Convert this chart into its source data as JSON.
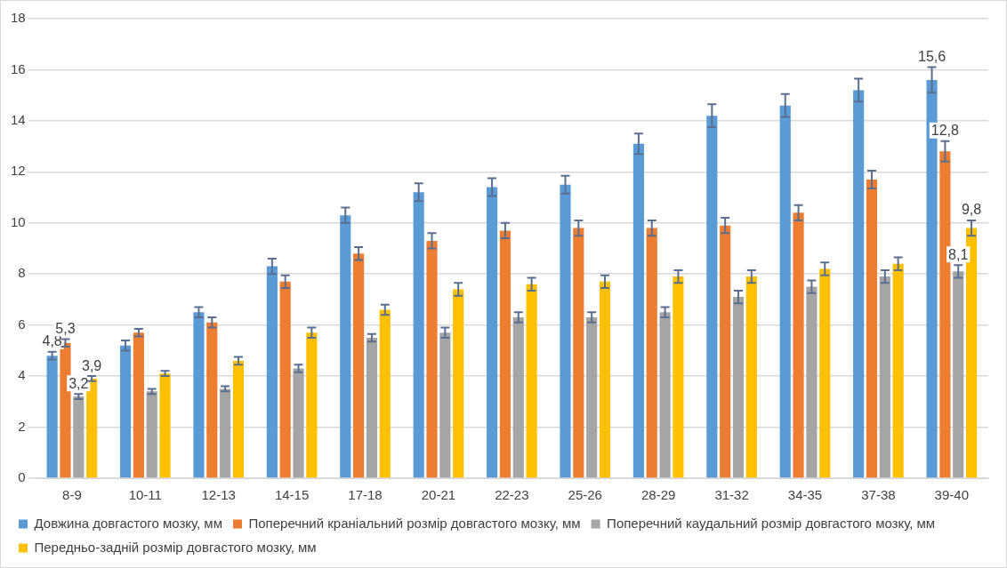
{
  "chart_data": {
    "type": "bar",
    "categories": [
      "8-9",
      "10-11",
      "12-13",
      "14-15",
      "17-18",
      "20-21",
      "22-23",
      "25-26",
      "28-29",
      "31-32",
      "34-35",
      "37-38",
      "39-40"
    ],
    "series": [
      {
        "name": "Довжина довгастого мозку, мм",
        "color": "#5b9bd5",
        "values": [
          4.8,
          5.2,
          6.5,
          8.3,
          10.3,
          11.2,
          11.4,
          11.5,
          13.1,
          14.2,
          14.6,
          15.2,
          15.6
        ],
        "errors": [
          0.15,
          0.2,
          0.2,
          0.3,
          0.3,
          0.35,
          0.35,
          0.35,
          0.4,
          0.45,
          0.45,
          0.45,
          0.5
        ],
        "value_labels": [
          "4,8",
          null,
          null,
          null,
          null,
          null,
          null,
          null,
          null,
          null,
          null,
          null,
          "15,6"
        ]
      },
      {
        "name": "Поперечний краніальний розмір довгастого мозку, мм",
        "color": "#ed7d31",
        "values": [
          5.3,
          5.7,
          6.1,
          7.7,
          8.8,
          9.3,
          9.7,
          9.8,
          9.8,
          9.9,
          10.4,
          11.7,
          12.8
        ],
        "errors": [
          0.15,
          0.15,
          0.2,
          0.25,
          0.25,
          0.3,
          0.3,
          0.3,
          0.3,
          0.3,
          0.3,
          0.35,
          0.4
        ],
        "value_labels": [
          "5,3",
          null,
          null,
          null,
          null,
          null,
          null,
          null,
          null,
          null,
          null,
          null,
          "12,8"
        ]
      },
      {
        "name": "Поперечний каудальний розмір довгастого мозку, мм",
        "color": "#a5a5a5",
        "values": [
          3.2,
          3.4,
          3.5,
          4.3,
          5.5,
          5.7,
          6.3,
          6.3,
          6.5,
          7.1,
          7.5,
          7.9,
          8.1
        ],
        "errors": [
          0.1,
          0.1,
          0.1,
          0.15,
          0.15,
          0.2,
          0.2,
          0.2,
          0.2,
          0.25,
          0.25,
          0.25,
          0.25
        ],
        "value_labels": [
          "3,2",
          null,
          null,
          null,
          null,
          null,
          null,
          null,
          null,
          null,
          null,
          null,
          "8,1"
        ]
      },
      {
        "name": "Передньо-задній розмір довгастого мозку, мм",
        "color": "#ffc000",
        "values": [
          3.9,
          4.1,
          4.6,
          5.7,
          6.6,
          7.4,
          7.6,
          7.7,
          7.9,
          7.9,
          8.2,
          8.4,
          9.8
        ],
        "errors": [
          0.1,
          0.1,
          0.15,
          0.2,
          0.2,
          0.25,
          0.25,
          0.25,
          0.25,
          0.25,
          0.25,
          0.25,
          0.3
        ],
        "value_labels": [
          "3,9",
          null,
          null,
          null,
          null,
          null,
          null,
          null,
          null,
          null,
          null,
          null,
          "9,8"
        ]
      }
    ],
    "ylim": [
      0,
      18
    ],
    "yticks": [
      0,
      2,
      4,
      6,
      8,
      10,
      12,
      14,
      16,
      18
    ],
    "grid": "y",
    "legend": "bottom"
  }
}
